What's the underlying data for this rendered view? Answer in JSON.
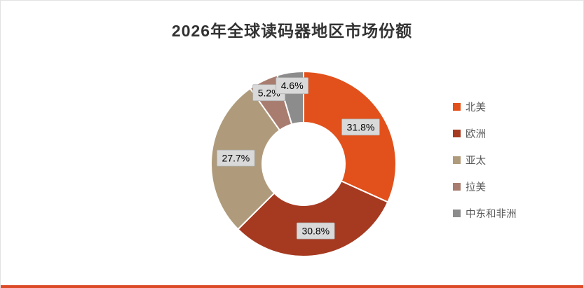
{
  "title": "2026年全球读码器地区市场份额",
  "frame": {
    "bottom_line_color": "#dd4a28"
  },
  "chart_data": {
    "type": "pie",
    "subtype": "donut",
    "title": "2026年全球读码器地区市场份额",
    "categories": [
      "北美",
      "欧洲",
      "亚太",
      "拉美",
      "中东和非洲"
    ],
    "values": [
      31.8,
      30.8,
      27.7,
      5.2,
      4.6
    ],
    "data_labels": [
      "31.8%",
      "30.8%",
      "27.7%",
      "5.2%",
      "4.6%"
    ],
    "colors": [
      "#e2511b",
      "#a63a21",
      "#af9b7b",
      "#a87d6f",
      "#8c8c8c"
    ],
    "start_angle_deg": 0,
    "direction": "clockwise",
    "inner_radius_ratio": 0.45,
    "legend_position": "right",
    "data_label_style": {
      "background": "#d9d9d9",
      "border": "#aeaeae",
      "text_color": "#000000"
    }
  }
}
